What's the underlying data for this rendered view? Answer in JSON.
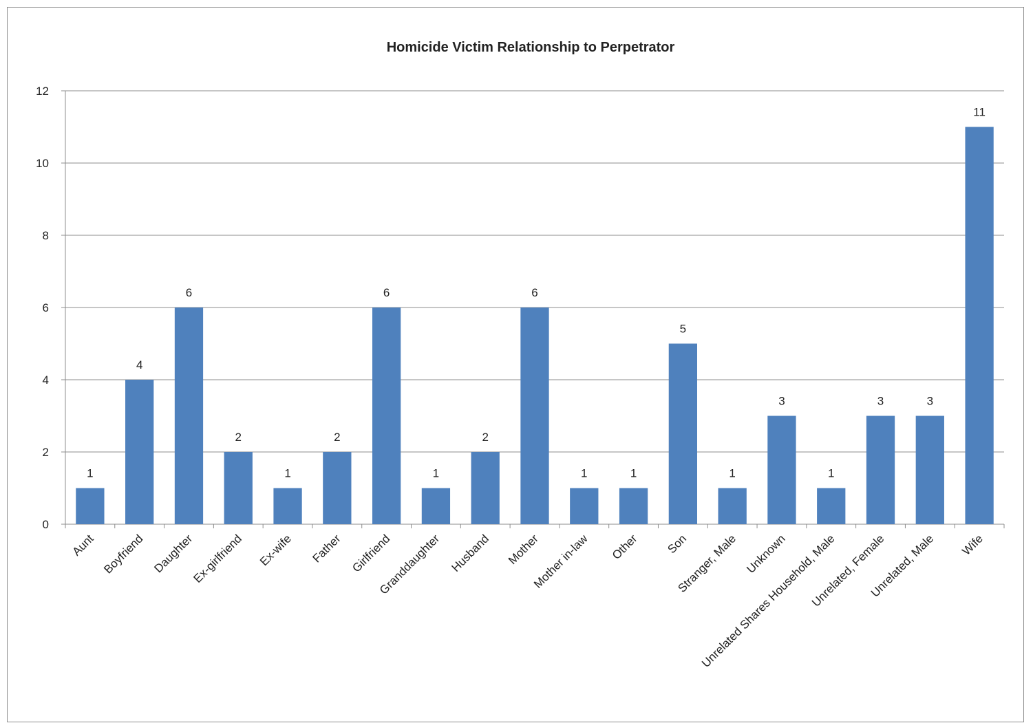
{
  "chart_data": {
    "type": "bar",
    "title": "Homicide Victim Relationship to Perpetrator",
    "xlabel": "",
    "ylabel": "",
    "categories": [
      "Aunt",
      "Boyfriend",
      "Daughter",
      "Ex-girlfriend",
      "Ex-wife",
      "Father",
      "Girlfriend",
      "Granddaughter",
      "Husband",
      "Mother",
      "Mother in-law",
      "Other",
      "Son",
      "Stranger, Male",
      "Unknown",
      "Unrelated Shares Household, Male",
      "Unrelated, Female",
      "Unrelated, Male",
      "Wife"
    ],
    "values": [
      1,
      4,
      6,
      2,
      1,
      2,
      6,
      1,
      2,
      6,
      1,
      1,
      5,
      1,
      3,
      1,
      3,
      3,
      11
    ],
    "ylim": [
      0,
      12
    ],
    "yticks": [
      0,
      2,
      4,
      6,
      8,
      10,
      12
    ],
    "grid": true,
    "data_labels": true,
    "bar_color": "#4f81bd"
  }
}
